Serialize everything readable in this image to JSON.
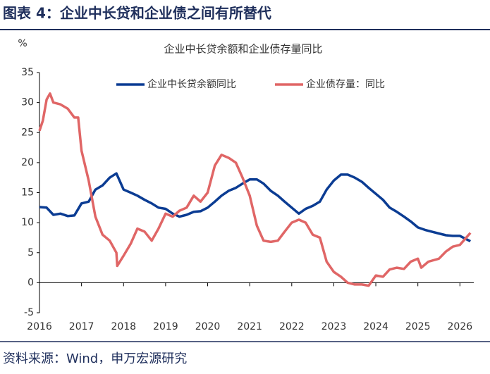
{
  "header": {
    "title": "图表 4：企业中长贷和企业债之间有所替代"
  },
  "chart_data": {
    "type": "line",
    "title": "企业中长贷余额和企业债存量同比",
    "ylabel": "%",
    "xlim": [
      2016,
      2026.33
    ],
    "xticks": [
      2016,
      2017,
      2018,
      2019,
      2020,
      2021,
      2022,
      2023,
      2024,
      2025,
      2026
    ],
    "ylim": [
      -5,
      35
    ],
    "yticks": [
      -5,
      0,
      5,
      10,
      15,
      20,
      25,
      30,
      35
    ],
    "grid": false,
    "legend": "top",
    "series": [
      {
        "name": "企业中长贷余额同比",
        "color": "#0b3c93",
        "x": [
          2016,
          2016.17,
          2016.33,
          2016.5,
          2016.67,
          2016.83,
          2017,
          2017.17,
          2017.33,
          2017.5,
          2017.67,
          2017.83,
          2018,
          2018.17,
          2018.33,
          2018.5,
          2018.67,
          2018.83,
          2019,
          2019.17,
          2019.33,
          2019.5,
          2019.67,
          2019.83,
          2020,
          2020.17,
          2020.33,
          2020.5,
          2020.67,
          2020.83,
          2021,
          2021.17,
          2021.33,
          2021.5,
          2021.67,
          2021.83,
          2022,
          2022.17,
          2022.33,
          2022.5,
          2022.67,
          2022.83,
          2023,
          2023.17,
          2023.33,
          2023.5,
          2023.67,
          2023.83,
          2024,
          2024.17,
          2024.33,
          2024.5,
          2024.67,
          2024.83,
          2025,
          2025.17,
          2025.33,
          2025.5,
          2025.67,
          2025.83,
          2026,
          2026.25
        ],
        "values": [
          12.6,
          12.5,
          11.3,
          11.5,
          11.1,
          11.2,
          13.2,
          13.5,
          15.5,
          16.2,
          17.5,
          18.2,
          15.5,
          15.0,
          14.5,
          13.8,
          13.2,
          12.5,
          12.3,
          11.5,
          11.0,
          11.3,
          11.8,
          11.9,
          12.5,
          13.5,
          14.5,
          15.3,
          15.8,
          16.5,
          17.2,
          17.2,
          16.5,
          15.3,
          14.5,
          13.5,
          12.5,
          11.5,
          12.3,
          12.8,
          13.5,
          15.5,
          17.0,
          18.0,
          18.0,
          17.5,
          16.8,
          15.8,
          14.8,
          13.8,
          12.5,
          11.8,
          11.0,
          10.2,
          9.2,
          8.8,
          8.5,
          8.2,
          7.9,
          7.8,
          7.8,
          6.9
        ]
      },
      {
        "name": "企业债存量：同比",
        "color": "#e06666",
        "x": [
          2016,
          2016.08,
          2016.17,
          2016.25,
          2016.33,
          2016.5,
          2016.67,
          2016.83,
          2016.92,
          2017,
          2017.17,
          2017.33,
          2017.5,
          2017.67,
          2017.83,
          2017.85,
          2018,
          2018.17,
          2018.33,
          2018.5,
          2018.67,
          2018.83,
          2019,
          2019.17,
          2019.33,
          2019.5,
          2019.67,
          2019.83,
          2020,
          2020.17,
          2020.33,
          2020.5,
          2020.67,
          2020.83,
          2021,
          2021.17,
          2021.33,
          2021.5,
          2021.67,
          2021.83,
          2022,
          2022.17,
          2022.33,
          2022.5,
          2022.67,
          2022.83,
          2023,
          2023.17,
          2023.33,
          2023.5,
          2023.67,
          2023.83,
          2024,
          2024.17,
          2024.33,
          2024.5,
          2024.67,
          2024.83,
          2025,
          2025.08,
          2025.25,
          2025.5,
          2025.67,
          2025.83,
          2026,
          2026.25
        ],
        "values": [
          25.3,
          27,
          30.5,
          31.5,
          30,
          29.7,
          29,
          27.5,
          27.5,
          22,
          17,
          11,
          8,
          7,
          5,
          2.8,
          4.5,
          6.5,
          9,
          8.5,
          7,
          9,
          11.5,
          11,
          12,
          12.5,
          14.5,
          13.5,
          15,
          19.5,
          21.3,
          20.8,
          20,
          17.5,
          14.5,
          9.5,
          7,
          6.8,
          7,
          8.5,
          10,
          10.5,
          10,
          8,
          7.5,
          3.5,
          1.8,
          1.0,
          0,
          -0.3,
          -0.3,
          -0.5,
          1.2,
          1.0,
          2.2,
          2.5,
          2.3,
          3.5,
          4.0,
          2.5,
          3.5,
          4.0,
          5.2,
          6.0,
          6.3,
          8.3
        ]
      }
    ]
  },
  "footer": {
    "source": "资料来源：Wind，申万宏源研究"
  }
}
